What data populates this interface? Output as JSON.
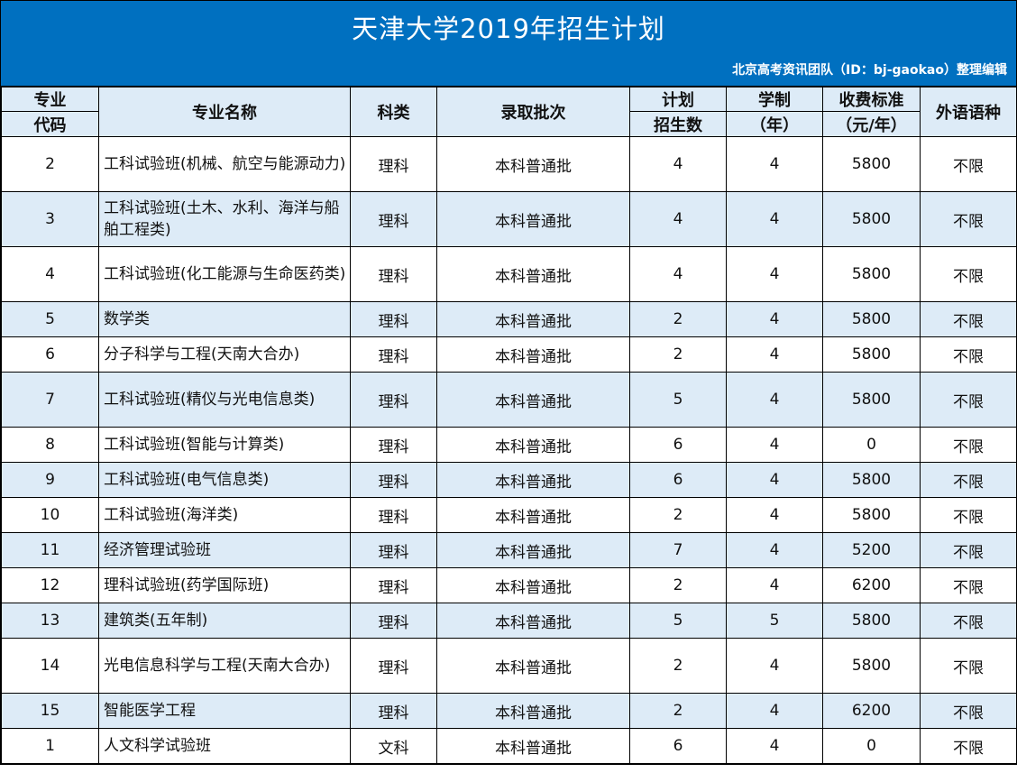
{
  "banner": {
    "title": "天津大学2019年招生计划",
    "subtitle": "北京高考资讯团队（ID：bj-gaokao）整理编辑",
    "color": "#0070c0"
  },
  "header": {
    "code_top": "专业",
    "code_bottom": "代码",
    "name": "专业名称",
    "category": "科类",
    "batch": "录取批次",
    "plan_top": "计划",
    "plan_bottom": "招生数",
    "years_top": "学制",
    "years_bottom": "（年）",
    "fee_top": "收费标准",
    "fee_bottom": "（元/年）",
    "language": "外语语种"
  },
  "rows": [
    {
      "code": "2",
      "name": "工科试验班(机械、航空与能源动力)",
      "category": "理科",
      "batch": "本科普通批",
      "plan": "4",
      "years": "4",
      "fee": "5800",
      "language": "不限"
    },
    {
      "code": "3",
      "name": "工科试验班(土木、水利、海洋与船舶工程类)",
      "category": "理科",
      "batch": "本科普通批",
      "plan": "4",
      "years": "4",
      "fee": "5800",
      "language": "不限"
    },
    {
      "code": "4",
      "name": "工科试验班(化工能源与生命医药类)",
      "category": "理科",
      "batch": "本科普通批",
      "plan": "4",
      "years": "4",
      "fee": "5800",
      "language": "不限"
    },
    {
      "code": "5",
      "name": "数学类",
      "category": "理科",
      "batch": "本科普通批",
      "plan": "2",
      "years": "4",
      "fee": "5800",
      "language": "不限"
    },
    {
      "code": "6",
      "name": "分子科学与工程(天南大合办)",
      "category": "理科",
      "batch": "本科普通批",
      "plan": "2",
      "years": "4",
      "fee": "5800",
      "language": "不限"
    },
    {
      "code": "7",
      "name": "工科试验班(精仪与光电信息类)",
      "category": "理科",
      "batch": "本科普通批",
      "plan": "5",
      "years": "4",
      "fee": "5800",
      "language": "不限"
    },
    {
      "code": "8",
      "name": "工科试验班(智能与计算类)",
      "category": "理科",
      "batch": "本科普通批",
      "plan": "6",
      "years": "4",
      "fee": "0",
      "language": "不限"
    },
    {
      "code": "9",
      "name": "工科试验班(电气信息类)",
      "category": "理科",
      "batch": "本科普通批",
      "plan": "6",
      "years": "4",
      "fee": "5800",
      "language": "不限"
    },
    {
      "code": "10",
      "name": "工科试验班(海洋类)",
      "category": "理科",
      "batch": "本科普通批",
      "plan": "2",
      "years": "4",
      "fee": "5800",
      "language": "不限"
    },
    {
      "code": "11",
      "name": "经济管理试验班",
      "category": "理科",
      "batch": "本科普通批",
      "plan": "7",
      "years": "4",
      "fee": "5200",
      "language": "不限"
    },
    {
      "code": "12",
      "name": "理科试验班(药学国际班)",
      "category": "理科",
      "batch": "本科普通批",
      "plan": "2",
      "years": "4",
      "fee": "6200",
      "language": "不限"
    },
    {
      "code": "13",
      "name": "建筑类(五年制)",
      "category": "理科",
      "batch": "本科普通批",
      "plan": "5",
      "years": "5",
      "fee": "5800",
      "language": "不限"
    },
    {
      "code": "14",
      "name": "光电信息科学与工程(天南大合办)",
      "category": "理科",
      "batch": "本科普通批",
      "plan": "2",
      "years": "4",
      "fee": "5800",
      "language": "不限"
    },
    {
      "code": "15",
      "name": "智能医学工程",
      "category": "理科",
      "batch": "本科普通批",
      "plan": "2",
      "years": "4",
      "fee": "6200",
      "language": "不限"
    },
    {
      "code": "1",
      "name": "人文科学试验班",
      "category": "文科",
      "batch": "本科普通批",
      "plan": "6",
      "years": "4",
      "fee": "0",
      "language": "不限"
    }
  ]
}
